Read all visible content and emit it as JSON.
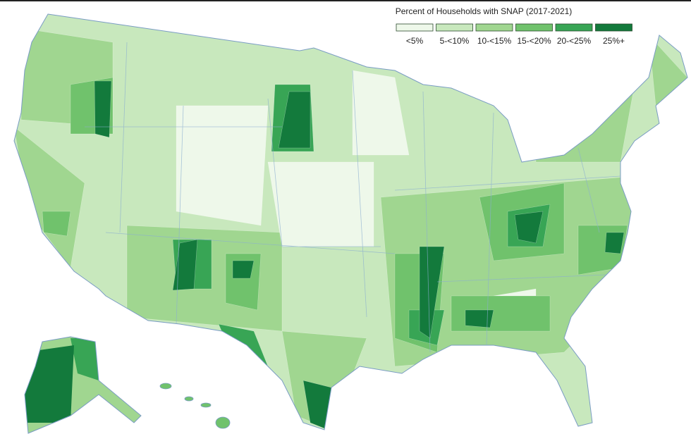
{
  "legend": {
    "title": "Percent of Households with SNAP (2017-2021)",
    "items": [
      {
        "label": "<5%",
        "color": "#eef8ea"
      },
      {
        "label": "5-<10%",
        "color": "#c8e8bd"
      },
      {
        "label": "10-<15%",
        "color": "#a0d690"
      },
      {
        "label": "15-<20%",
        "color": "#70c26c"
      },
      {
        "label": "20-<25%",
        "color": "#38a555"
      },
      {
        "label": "25%+",
        "color": "#137a3c"
      }
    ]
  }
}
